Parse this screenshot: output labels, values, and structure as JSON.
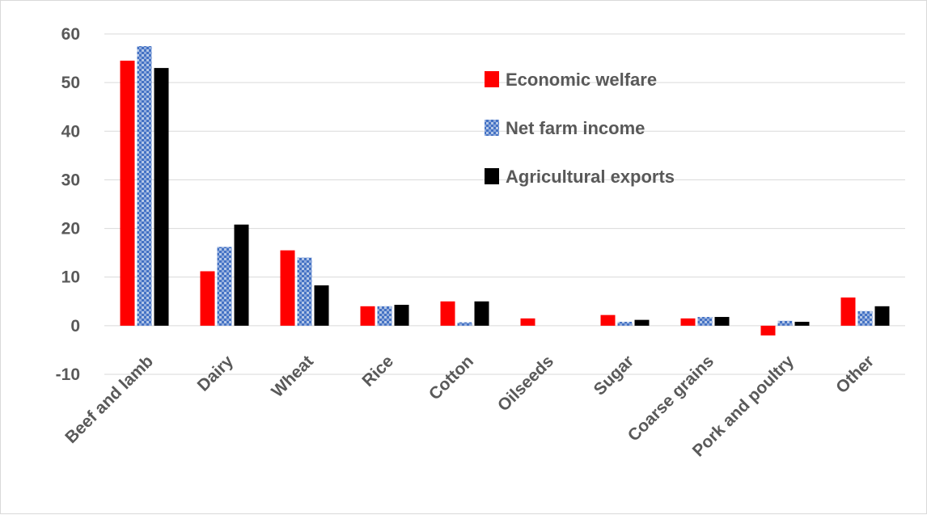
{
  "chart_data": {
    "type": "bar",
    "title": "",
    "xlabel": "",
    "ylabel": "",
    "categories": [
      "Beef and lamb",
      "Dairy",
      "Wheat",
      "Rice",
      "Cotton",
      "Oilseeds",
      "Sugar",
      "Coarse grains",
      "Pork and poultry",
      "Other"
    ],
    "series": [
      {
        "name": "Economic welfare",
        "color": "#ff0000",
        "pattern": "solid",
        "values": [
          54.5,
          11.2,
          15.5,
          4.0,
          5.0,
          1.5,
          2.2,
          1.5,
          -2.0,
          5.8
        ]
      },
      {
        "name": "Net farm income",
        "color": "#4472c4",
        "pattern": "dotted",
        "values": [
          57.5,
          16.2,
          14.0,
          4.0,
          0.7,
          0.0,
          0.8,
          1.8,
          1.0,
          3.0
        ]
      },
      {
        "name": "Agricultural exports",
        "color": "#000000",
        "pattern": "solid",
        "values": [
          53.0,
          20.8,
          8.3,
          4.3,
          5.0,
          0.0,
          1.2,
          1.8,
          0.8,
          4.0
        ]
      }
    ],
    "ylim": [
      -10,
      60
    ],
    "yticks": [
      -10,
      0,
      10,
      20,
      30,
      40,
      50,
      60
    ],
    "grid": true,
    "legend_position": "top-right"
  }
}
